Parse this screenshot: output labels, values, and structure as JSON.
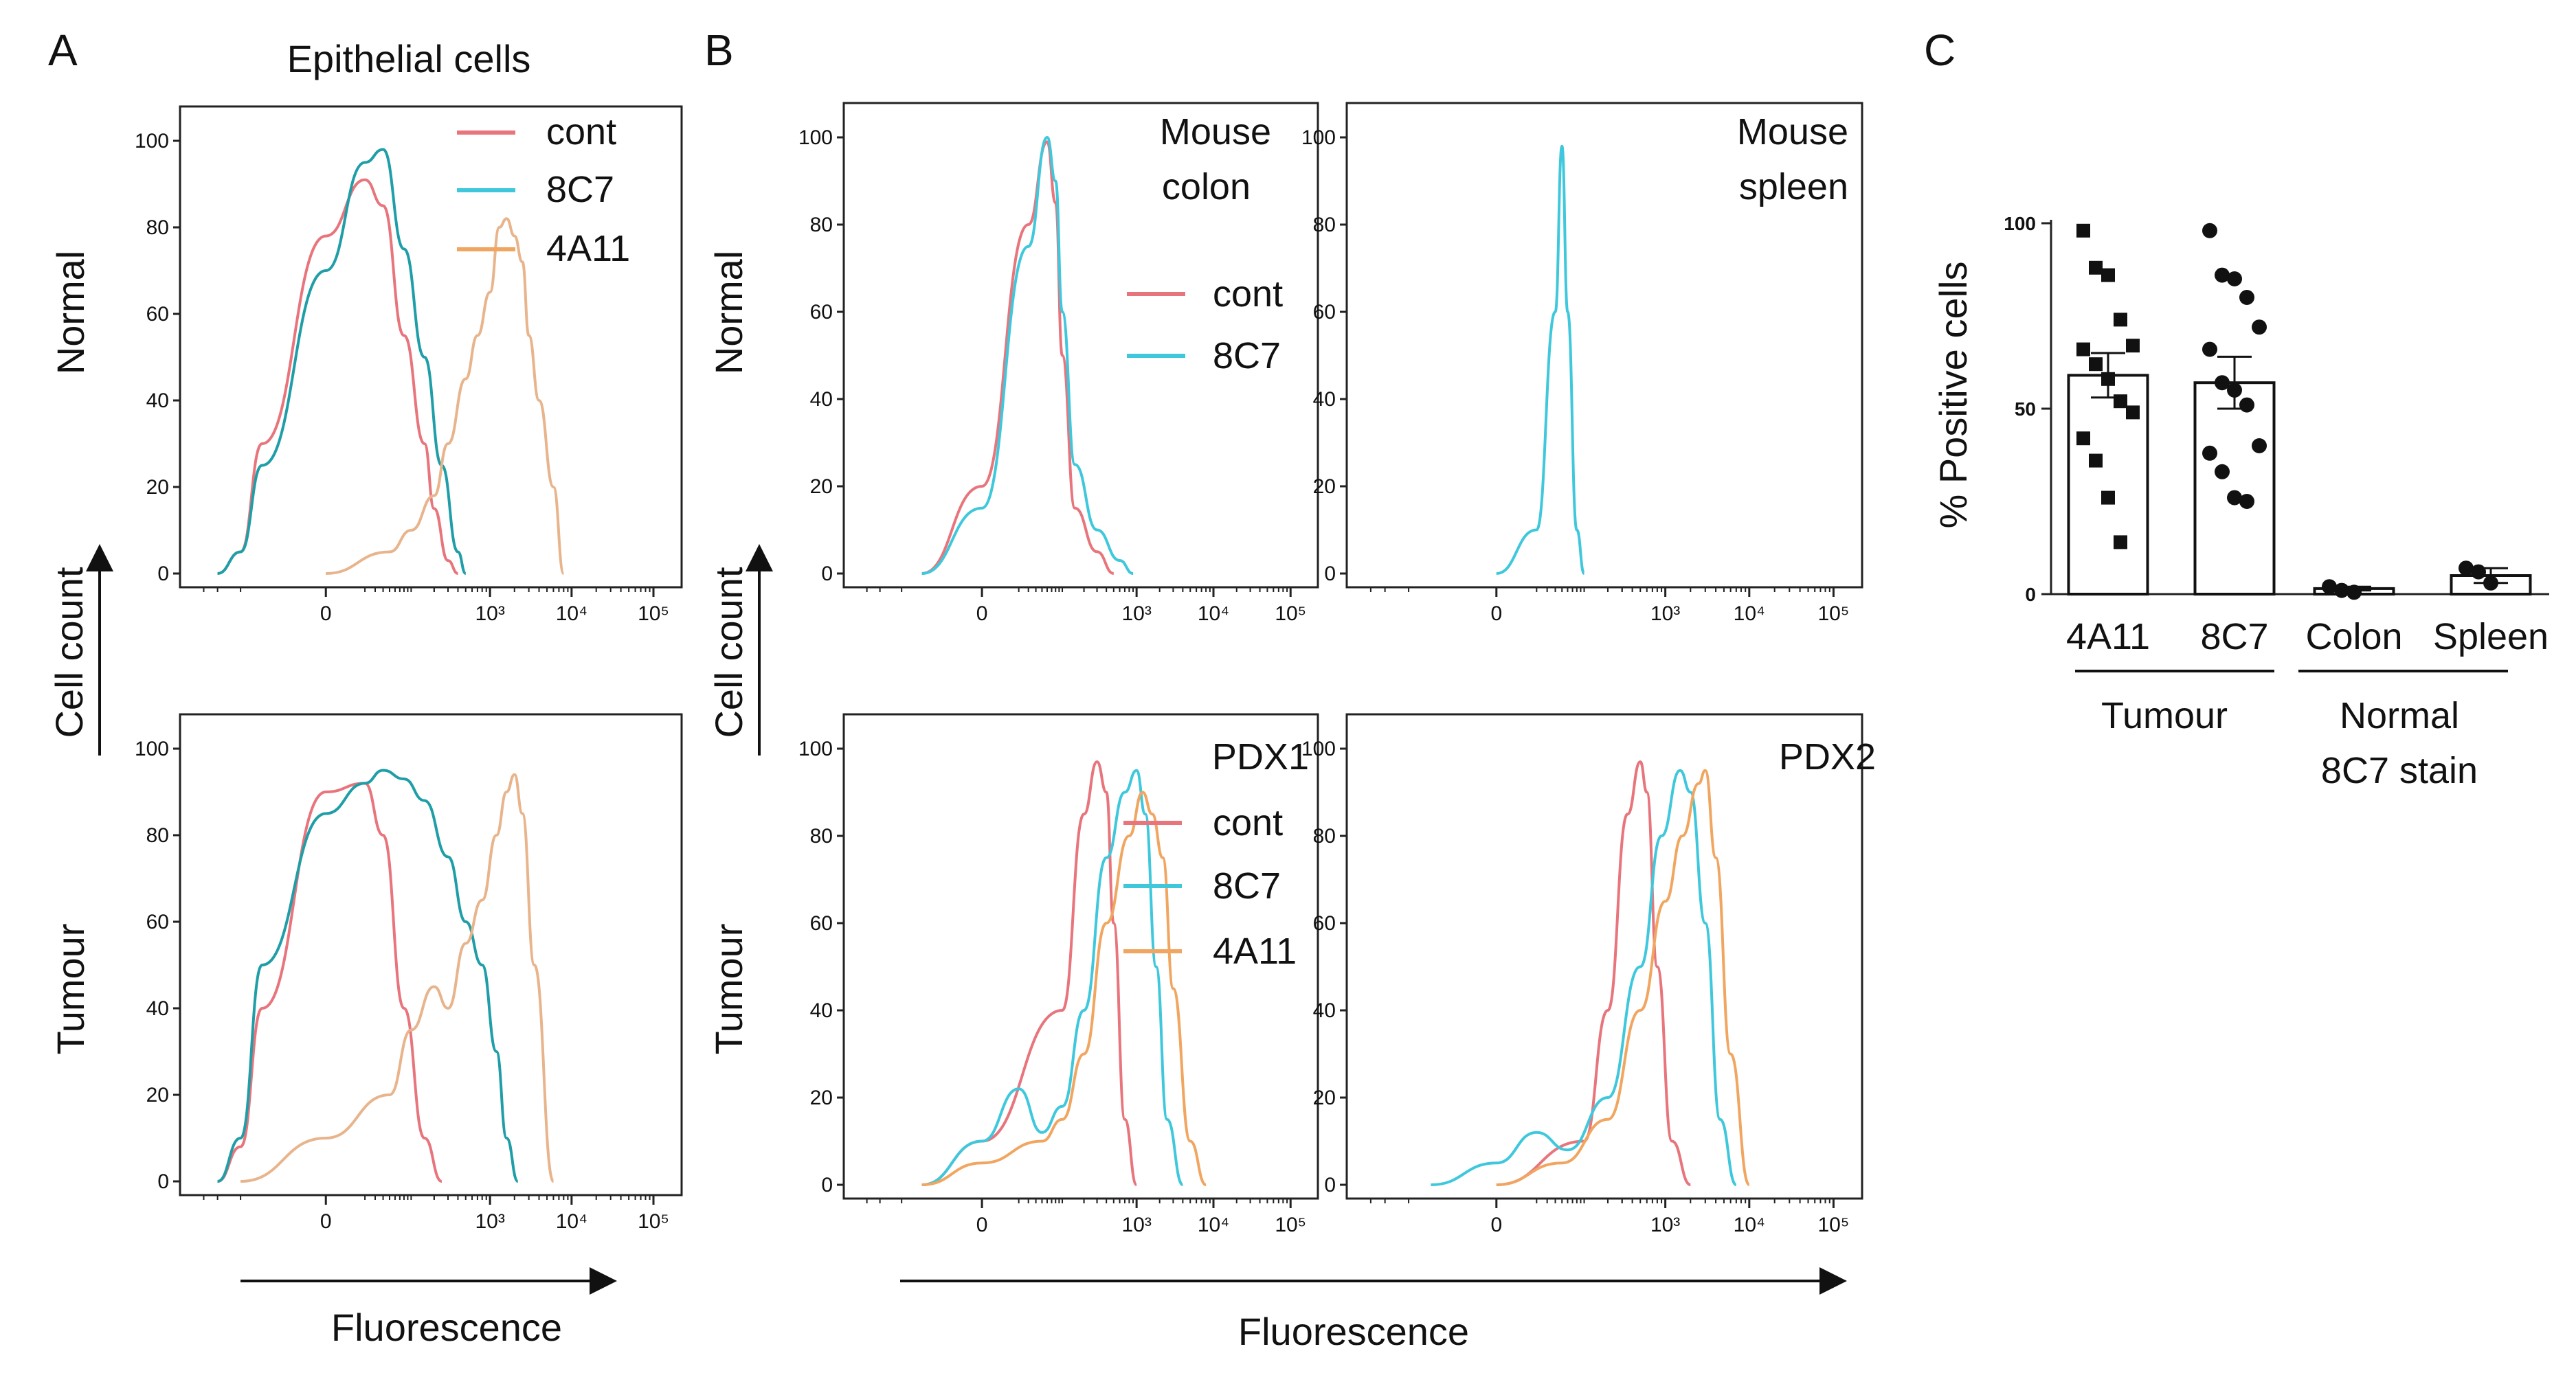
{
  "figure": {
    "panel_a_letter": "A",
    "panel_b_letter": "B",
    "panel_c_letter": "C",
    "panel_a_title": "Epithelial cells",
    "row_label_normal": "Normal",
    "row_label_tumour": "Tumour",
    "cell_count_label": "Cell count",
    "fluorescence_label": "Fluorescence",
    "legend_cont": "cont",
    "legend_8c7": "8C7",
    "legend_4a11": "4A11",
    "b_top_left_label_1": "Mouse",
    "b_top_left_label_2": "colon",
    "b_top_right_label_1": "Mouse",
    "b_top_right_label_2": "spleen",
    "b_bottom_left_label": "PDX1",
    "b_bottom_right_label": "PDX2",
    "y_ticks": [
      "100",
      "80",
      "60",
      "40",
      "20",
      "0"
    ],
    "x_tick_0": "0",
    "x_tick_3": "10³",
    "x_tick_4": "10⁴",
    "x_tick_5": "10⁵",
    "c_ylabel": "% Positive cells",
    "c_yticks": [
      "100",
      "50",
      "0"
    ],
    "c_cat_4a11": "4A11",
    "c_cat_8c7": "8C7",
    "c_cat_colon": "Colon",
    "c_cat_spleen": "Spleen",
    "c_group_tumour": "Tumour",
    "c_group_normal_1": "Normal",
    "c_group_normal_2": "8C7 stain"
  },
  "colors": {
    "cont": "#e8747c",
    "c8c7": "#3fc8dc",
    "c8c7_dark": "#1f9ea8",
    "c4a11": "#f0a660",
    "c4a11_light": "#e8b48c"
  },
  "chart_data": [
    {
      "type": "line",
      "panel": "A-Normal",
      "xlabel": "Fluorescence",
      "ylabel": "Cell count",
      "xscale": "biexponential",
      "ylim": [
        0,
        100
      ],
      "series": [
        {
          "name": "cont",
          "x": [
            -200,
            -100,
            -50,
            0,
            20,
            40,
            80,
            150,
            200,
            300,
            400
          ],
          "y": [
            0,
            5,
            30,
            78,
            91,
            85,
            55,
            30,
            15,
            3,
            0
          ]
        },
        {
          "name": "8C7",
          "x": [
            -200,
            -100,
            -50,
            0,
            20,
            40,
            80,
            150,
            250,
            400,
            500
          ],
          "y": [
            0,
            5,
            25,
            70,
            95,
            98,
            75,
            50,
            25,
            5,
            0
          ]
        },
        {
          "name": "4A11",
          "x": [
            0,
            50,
            100,
            200,
            300,
            500,
            700,
            1000,
            1300,
            1600,
            2000,
            2500,
            3000,
            4000,
            6000,
            8000
          ],
          "y": [
            0,
            5,
            10,
            18,
            30,
            45,
            55,
            65,
            80,
            82,
            78,
            72,
            55,
            40,
            20,
            0
          ]
        }
      ]
    },
    {
      "type": "line",
      "panel": "A-Tumour",
      "xlabel": "Fluorescence",
      "ylabel": "Cell count",
      "xscale": "biexponential",
      "ylim": [
        0,
        100
      ],
      "series": [
        {
          "name": "cont",
          "x": [
            -200,
            -100,
            -50,
            0,
            20,
            40,
            80,
            150,
            250
          ],
          "y": [
            0,
            8,
            40,
            90,
            92,
            80,
            40,
            10,
            0
          ]
        },
        {
          "name": "8C7",
          "x": [
            -200,
            -100,
            -50,
            0,
            20,
            40,
            80,
            150,
            300,
            500,
            800,
            1200,
            1600,
            2200
          ],
          "y": [
            0,
            10,
            50,
            85,
            92,
            95,
            93,
            88,
            75,
            60,
            50,
            30,
            10,
            0
          ]
        },
        {
          "name": "4A11",
          "x": [
            -100,
            0,
            50,
            100,
            200,
            300,
            500,
            800,
            1200,
            1600,
            2000,
            2500,
            3500,
            6000
          ],
          "y": [
            0,
            10,
            20,
            35,
            45,
            40,
            55,
            65,
            80,
            90,
            94,
            85,
            50,
            0
          ]
        }
      ]
    },
    {
      "type": "line",
      "panel": "B-Normal-Mouse colon",
      "xlabel": "Fluorescence",
      "ylabel": "Cell count",
      "xscale": "biexponential",
      "ylim": [
        0,
        100
      ],
      "series": [
        {
          "name": "cont",
          "x": [
            -50,
            0,
            30,
            60,
            80,
            100,
            150,
            300,
            500
          ],
          "y": [
            0,
            20,
            80,
            99,
            85,
            50,
            15,
            5,
            0
          ]
        },
        {
          "name": "8C7",
          "x": [
            -50,
            0,
            30,
            60,
            80,
            100,
            150,
            300,
            600,
            900
          ],
          "y": [
            0,
            15,
            75,
            100,
            90,
            60,
            25,
            10,
            3,
            0
          ]
        }
      ]
    },
    {
      "type": "line",
      "panel": "B-Normal-Mouse spleen",
      "xlabel": "Fluorescence",
      "ylabel": "Cell count",
      "xscale": "biexponential",
      "ylim": [
        0,
        100
      ],
      "series": [
        {
          "name": "8C7",
          "x": [
            0,
            20,
            40,
            50,
            60,
            80,
            100
          ],
          "y": [
            0,
            10,
            60,
            98,
            60,
            10,
            0
          ]
        }
      ]
    },
    {
      "type": "line",
      "panel": "B-Tumour-PDX1",
      "xlabel": "Fluorescence",
      "ylabel": "Cell count",
      "xscale": "biexponential",
      "ylim": [
        0,
        100
      ],
      "series": [
        {
          "name": "cont",
          "x": [
            -50,
            0,
            100,
            200,
            300,
            400,
            500,
            700,
            1000
          ],
          "y": [
            0,
            10,
            40,
            85,
            97,
            90,
            60,
            15,
            0
          ]
        },
        {
          "name": "8C7",
          "x": [
            -50,
            0,
            20,
            50,
            100,
            200,
            400,
            700,
            1000,
            1300,
            1800,
            2500,
            4000
          ],
          "y": [
            0,
            10,
            22,
            12,
            18,
            40,
            75,
            90,
            95,
            85,
            50,
            15,
            0
          ]
        },
        {
          "name": "4A11",
          "x": [
            -50,
            0,
            50,
            100,
            200,
            400,
            800,
            1200,
            1600,
            2200,
            3000,
            5000,
            8000
          ],
          "y": [
            0,
            5,
            10,
            15,
            30,
            60,
            80,
            90,
            85,
            75,
            45,
            10,
            0
          ]
        }
      ]
    },
    {
      "type": "line",
      "panel": "B-Tumour-PDX2",
      "xlabel": "Fluorescence",
      "ylabel": "Cell count",
      "xscale": "biexponential",
      "ylim": [
        0,
        100
      ],
      "series": [
        {
          "name": "cont",
          "x": [
            0,
            100,
            200,
            350,
            500,
            600,
            800,
            1200,
            2000
          ],
          "y": [
            0,
            10,
            40,
            85,
            97,
            90,
            50,
            10,
            0
          ]
        },
        {
          "name": "8C7",
          "x": [
            -50,
            0,
            20,
            60,
            200,
            500,
            900,
            1500,
            2000,
            3000,
            4500,
            7000
          ],
          "y": [
            0,
            5,
            12,
            8,
            20,
            50,
            80,
            95,
            90,
            60,
            15,
            0
          ]
        },
        {
          "name": "4A11",
          "x": [
            0,
            50,
            200,
            500,
            1000,
            1600,
            2500,
            3000,
            4000,
            6000,
            10000
          ],
          "y": [
            0,
            5,
            15,
            40,
            65,
            80,
            92,
            95,
            75,
            30,
            0
          ]
        }
      ]
    },
    {
      "type": "bar",
      "panel": "C",
      "ylabel": "% Positive cells",
      "ylim": [
        0,
        100
      ],
      "categories": [
        "4A11",
        "8C7",
        "Colon",
        "Spleen"
      ],
      "groups": [
        {
          "label": "Tumour",
          "categories": [
            "4A11",
            "8C7"
          ]
        },
        {
          "label": "Normal 8C7 stain",
          "categories": [
            "Colon",
            "Spleen"
          ]
        }
      ],
      "means": [
        59,
        57,
        1.5,
        5
      ],
      "sem": [
        6,
        7,
        0.5,
        2
      ],
      "points": [
        [
          98,
          88,
          86,
          74,
          67,
          66,
          62,
          58,
          52,
          49,
          42,
          36,
          26,
          14
        ],
        [
          98,
          86,
          85,
          80,
          72,
          66,
          57,
          55,
          51,
          40,
          38,
          33,
          26,
          25
        ],
        [
          2,
          1,
          0.5
        ],
        [
          7,
          6,
          3
        ]
      ]
    }
  ]
}
